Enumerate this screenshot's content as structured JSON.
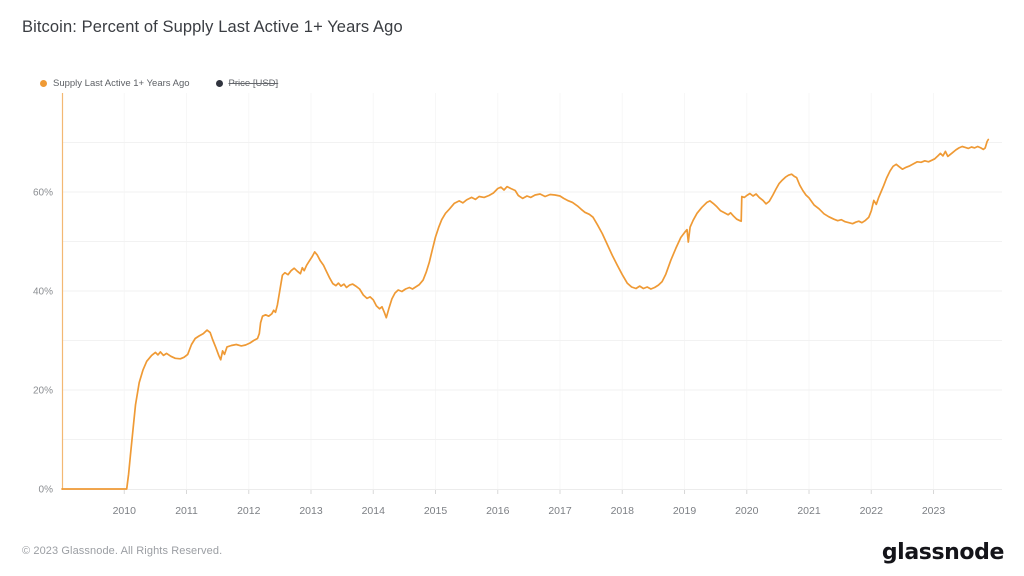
{
  "header": {
    "title": "Bitcoin: Percent of Supply Last Active 1+ Years Ago"
  },
  "legend": {
    "items": [
      {
        "label": "Supply Last Active 1+ Years Ago",
        "color": "#EF9A35",
        "disabled": false
      },
      {
        "label": "Price [USD]",
        "color": "#31343F",
        "disabled": true
      }
    ]
  },
  "chart_data": {
    "type": "line",
    "title": "Bitcoin: Percent of Supply Last Active 1+ Years Ago",
    "xlabel": "",
    "ylabel": "",
    "grid": true,
    "legend_position": "top-left",
    "xlim": [
      2009.0,
      2024.1
    ],
    "ylim": [
      0,
      80
    ],
    "x_ticks": [
      2010,
      2011,
      2012,
      2013,
      2014,
      2015,
      2016,
      2017,
      2018,
      2019,
      2020,
      2021,
      2022,
      2023
    ],
    "y_ticks": [
      {
        "value": 0,
        "label": "0%"
      },
      {
        "value": 20,
        "label": "20%"
      },
      {
        "value": 40,
        "label": "40%"
      },
      {
        "value": 60,
        "label": "60%"
      }
    ],
    "y_gridlines": [
      10,
      20,
      30,
      40,
      50,
      60,
      70
    ],
    "series": [
      {
        "name": "Supply Last Active 1+ Years Ago",
        "color": "#EF9A35",
        "visible": true,
        "unit": "%",
        "points": [
          [
            2009.0,
            0
          ],
          [
            2009.3,
            0
          ],
          [
            2009.6,
            0
          ],
          [
            2009.9,
            0
          ],
          [
            2010.04,
            0
          ],
          [
            2010.07,
            3
          ],
          [
            2010.1,
            7
          ],
          [
            2010.14,
            12
          ],
          [
            2010.18,
            17
          ],
          [
            2010.24,
            21.5
          ],
          [
            2010.3,
            24
          ],
          [
            2010.36,
            25.8
          ],
          [
            2010.44,
            27
          ],
          [
            2010.5,
            27.6
          ],
          [
            2010.54,
            27.1
          ],
          [
            2010.58,
            27.7
          ],
          [
            2010.63,
            27.0
          ],
          [
            2010.68,
            27.4
          ],
          [
            2010.75,
            26.8
          ],
          [
            2010.82,
            26.4
          ],
          [
            2010.9,
            26.3
          ],
          [
            2010.96,
            26.6
          ],
          [
            2011.02,
            27.2
          ],
          [
            2011.08,
            29.2
          ],
          [
            2011.14,
            30.4
          ],
          [
            2011.2,
            30.9
          ],
          [
            2011.27,
            31.4
          ],
          [
            2011.33,
            32.1
          ],
          [
            2011.38,
            31.6
          ],
          [
            2011.42,
            30.2
          ],
          [
            2011.47,
            28.6
          ],
          [
            2011.52,
            26.9
          ],
          [
            2011.55,
            26.1
          ],
          [
            2011.58,
            27.9
          ],
          [
            2011.61,
            27.2
          ],
          [
            2011.65,
            28.7
          ],
          [
            2011.72,
            29.0
          ],
          [
            2011.8,
            29.2
          ],
          [
            2011.88,
            28.9
          ],
          [
            2011.95,
            29.1
          ],
          [
            2012.02,
            29.5
          ],
          [
            2012.08,
            30.0
          ],
          [
            2012.14,
            30.4
          ],
          [
            2012.17,
            31.4
          ],
          [
            2012.19,
            33.6
          ],
          [
            2012.22,
            34.9
          ],
          [
            2012.27,
            35.2
          ],
          [
            2012.32,
            34.9
          ],
          [
            2012.37,
            35.4
          ],
          [
            2012.4,
            36.1
          ],
          [
            2012.43,
            35.7
          ],
          [
            2012.46,
            37.2
          ],
          [
            2012.5,
            40.2
          ],
          [
            2012.54,
            43.2
          ],
          [
            2012.58,
            43.7
          ],
          [
            2012.63,
            43.3
          ],
          [
            2012.68,
            44.1
          ],
          [
            2012.73,
            44.6
          ],
          [
            2012.78,
            44.0
          ],
          [
            2012.83,
            43.5
          ],
          [
            2012.86,
            44.7
          ],
          [
            2012.89,
            44.1
          ],
          [
            2012.93,
            45.2
          ],
          [
            2012.97,
            46.0
          ],
          [
            2013.02,
            47.0
          ],
          [
            2013.06,
            47.9
          ],
          [
            2013.1,
            47.3
          ],
          [
            2013.15,
            46.1
          ],
          [
            2013.2,
            45.2
          ],
          [
            2013.25,
            43.9
          ],
          [
            2013.3,
            42.6
          ],
          [
            2013.35,
            41.5
          ],
          [
            2013.4,
            41.1
          ],
          [
            2013.44,
            41.6
          ],
          [
            2013.48,
            41.0
          ],
          [
            2013.53,
            41.4
          ],
          [
            2013.57,
            40.7
          ],
          [
            2013.62,
            41.2
          ],
          [
            2013.67,
            41.4
          ],
          [
            2013.72,
            41.0
          ],
          [
            2013.78,
            40.4
          ],
          [
            2013.84,
            39.2
          ],
          [
            2013.9,
            38.5
          ],
          [
            2013.95,
            38.8
          ],
          [
            2014.0,
            38.2
          ],
          [
            2014.05,
            37.0
          ],
          [
            2014.1,
            36.4
          ],
          [
            2014.14,
            36.8
          ],
          [
            2014.18,
            35.6
          ],
          [
            2014.21,
            34.6
          ],
          [
            2014.25,
            36.4
          ],
          [
            2014.3,
            38.4
          ],
          [
            2014.35,
            39.6
          ],
          [
            2014.4,
            40.2
          ],
          [
            2014.46,
            39.9
          ],
          [
            2014.52,
            40.4
          ],
          [
            2014.58,
            40.7
          ],
          [
            2014.63,
            40.4
          ],
          [
            2014.68,
            40.8
          ],
          [
            2014.74,
            41.3
          ],
          [
            2014.8,
            42.2
          ],
          [
            2014.85,
            43.8
          ],
          [
            2014.9,
            45.8
          ],
          [
            2014.95,
            48.4
          ],
          [
            2015.0,
            50.9
          ],
          [
            2015.05,
            52.8
          ],
          [
            2015.1,
            54.4
          ],
          [
            2015.16,
            55.7
          ],
          [
            2015.22,
            56.5
          ],
          [
            2015.3,
            57.7
          ],
          [
            2015.38,
            58.2
          ],
          [
            2015.44,
            57.8
          ],
          [
            2015.5,
            58.4
          ],
          [
            2015.58,
            58.9
          ],
          [
            2015.64,
            58.5
          ],
          [
            2015.7,
            59.1
          ],
          [
            2015.78,
            58.9
          ],
          [
            2015.86,
            59.3
          ],
          [
            2015.93,
            59.8
          ],
          [
            2016.0,
            60.7
          ],
          [
            2016.05,
            61.0
          ],
          [
            2016.1,
            60.4
          ],
          [
            2016.15,
            61.1
          ],
          [
            2016.21,
            60.7
          ],
          [
            2016.28,
            60.3
          ],
          [
            2016.33,
            59.3
          ],
          [
            2016.4,
            58.7
          ],
          [
            2016.47,
            59.2
          ],
          [
            2016.53,
            58.9
          ],
          [
            2016.6,
            59.4
          ],
          [
            2016.68,
            59.6
          ],
          [
            2016.76,
            59.1
          ],
          [
            2016.84,
            59.5
          ],
          [
            2016.92,
            59.4
          ],
          [
            2017.0,
            59.2
          ],
          [
            2017.06,
            58.7
          ],
          [
            2017.12,
            58.3
          ],
          [
            2017.2,
            57.9
          ],
          [
            2017.28,
            57.2
          ],
          [
            2017.34,
            56.5
          ],
          [
            2017.4,
            55.9
          ],
          [
            2017.47,
            55.5
          ],
          [
            2017.53,
            54.9
          ],
          [
            2017.6,
            53.4
          ],
          [
            2017.68,
            51.6
          ],
          [
            2017.76,
            49.4
          ],
          [
            2017.84,
            47.2
          ],
          [
            2017.92,
            45.2
          ],
          [
            2018.0,
            43.3
          ],
          [
            2018.08,
            41.6
          ],
          [
            2018.15,
            40.8
          ],
          [
            2018.22,
            40.5
          ],
          [
            2018.28,
            41.0
          ],
          [
            2018.34,
            40.5
          ],
          [
            2018.4,
            40.8
          ],
          [
            2018.46,
            40.4
          ],
          [
            2018.52,
            40.7
          ],
          [
            2018.58,
            41.2
          ],
          [
            2018.64,
            41.9
          ],
          [
            2018.7,
            43.4
          ],
          [
            2018.78,
            46.2
          ],
          [
            2018.86,
            48.6
          ],
          [
            2018.94,
            50.8
          ],
          [
            2019.0,
            51.8
          ],
          [
            2019.04,
            52.4
          ],
          [
            2019.06,
            49.9
          ],
          [
            2019.09,
            52.9
          ],
          [
            2019.14,
            54.3
          ],
          [
            2019.2,
            55.7
          ],
          [
            2019.28,
            56.9
          ],
          [
            2019.36,
            57.9
          ],
          [
            2019.41,
            58.2
          ],
          [
            2019.46,
            57.7
          ],
          [
            2019.52,
            57.0
          ],
          [
            2019.58,
            56.2
          ],
          [
            2019.64,
            55.8
          ],
          [
            2019.7,
            55.4
          ],
          [
            2019.74,
            55.8
          ],
          [
            2019.79,
            55.1
          ],
          [
            2019.84,
            54.5
          ],
          [
            2019.89,
            54.2
          ],
          [
            2019.91,
            54.1
          ],
          [
            2019.92,
            59.1
          ],
          [
            2019.96,
            58.9
          ],
          [
            2020.0,
            59.3
          ],
          [
            2020.05,
            59.7
          ],
          [
            2020.1,
            59.2
          ],
          [
            2020.15,
            59.6
          ],
          [
            2020.2,
            58.9
          ],
          [
            2020.26,
            58.3
          ],
          [
            2020.31,
            57.6
          ],
          [
            2020.36,
            58.1
          ],
          [
            2020.42,
            59.4
          ],
          [
            2020.47,
            60.6
          ],
          [
            2020.52,
            61.7
          ],
          [
            2020.57,
            62.4
          ],
          [
            2020.62,
            63.0
          ],
          [
            2020.67,
            63.4
          ],
          [
            2020.72,
            63.6
          ],
          [
            2020.76,
            63.2
          ],
          [
            2020.8,
            62.9
          ],
          [
            2020.85,
            61.4
          ],
          [
            2020.9,
            60.3
          ],
          [
            2020.95,
            59.4
          ],
          [
            2021.0,
            58.8
          ],
          [
            2021.08,
            57.4
          ],
          [
            2021.16,
            56.6
          ],
          [
            2021.24,
            55.6
          ],
          [
            2021.32,
            55.0
          ],
          [
            2021.4,
            54.5
          ],
          [
            2021.46,
            54.2
          ],
          [
            2021.52,
            54.4
          ],
          [
            2021.58,
            54.0
          ],
          [
            2021.64,
            53.8
          ],
          [
            2021.7,
            53.6
          ],
          [
            2021.75,
            53.9
          ],
          [
            2021.8,
            54.1
          ],
          [
            2021.85,
            53.8
          ],
          [
            2021.9,
            54.2
          ],
          [
            2021.96,
            54.9
          ],
          [
            2022.0,
            56.2
          ],
          [
            2022.04,
            58.3
          ],
          [
            2022.08,
            57.5
          ],
          [
            2022.12,
            58.9
          ],
          [
            2022.16,
            60.1
          ],
          [
            2022.2,
            61.3
          ],
          [
            2022.25,
            62.9
          ],
          [
            2022.3,
            64.2
          ],
          [
            2022.35,
            65.2
          ],
          [
            2022.4,
            65.6
          ],
          [
            2022.45,
            65.1
          ],
          [
            2022.5,
            64.6
          ],
          [
            2022.56,
            65.0
          ],
          [
            2022.62,
            65.3
          ],
          [
            2022.68,
            65.7
          ],
          [
            2022.74,
            66.1
          ],
          [
            2022.8,
            66.0
          ],
          [
            2022.86,
            66.3
          ],
          [
            2022.92,
            66.1
          ],
          [
            2022.97,
            66.4
          ],
          [
            2023.02,
            66.7
          ],
          [
            2023.07,
            67.3
          ],
          [
            2023.11,
            67.8
          ],
          [
            2023.15,
            67.3
          ],
          [
            2023.19,
            68.2
          ],
          [
            2023.23,
            67.2
          ],
          [
            2023.27,
            67.6
          ],
          [
            2023.31,
            68.0
          ],
          [
            2023.36,
            68.5
          ],
          [
            2023.41,
            68.9
          ],
          [
            2023.46,
            69.2
          ],
          [
            2023.51,
            69.0
          ],
          [
            2023.56,
            68.8
          ],
          [
            2023.61,
            69.1
          ],
          [
            2023.66,
            68.9
          ],
          [
            2023.71,
            69.2
          ],
          [
            2023.76,
            68.9
          ],
          [
            2023.8,
            68.6
          ],
          [
            2023.83,
            68.9
          ],
          [
            2023.86,
            70.2
          ],
          [
            2023.88,
            70.6
          ]
        ]
      },
      {
        "name": "Price [USD]",
        "color": "#31343F",
        "visible": false,
        "points": []
      }
    ]
  },
  "footer": {
    "copyright": "© 2023 Glassnode. All Rights Reserved.",
    "brand": "glassnode"
  },
  "colors": {
    "accent_orange": "#EF9A35",
    "left_axis_orange": "#F3B873",
    "grid_h": "#F2F2F2",
    "grid_v": "#F7F7F7",
    "bottom_axis": "#ECECEC",
    "tick": "#D8D8D8",
    "y_label_text": "#8A8D91",
    "x_label_text": "#7C7F84",
    "title_text": "#3A3D42",
    "footer_text": "#9B9EA3"
  }
}
